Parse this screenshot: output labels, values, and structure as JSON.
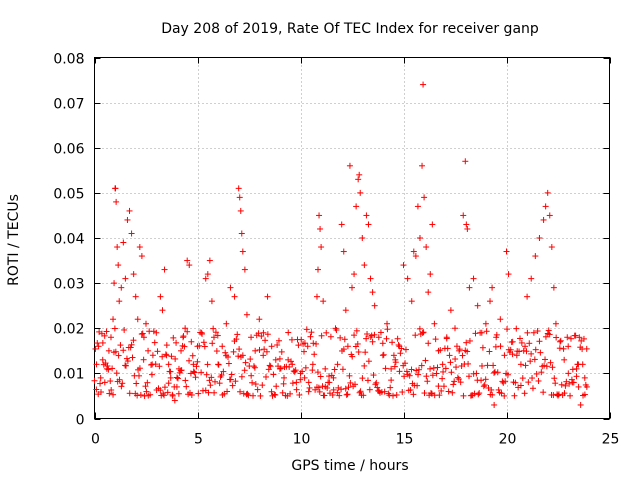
{
  "chart_data": {
    "type": "scatter",
    "title": "Day 208 of 2019, Rate Of TEC Index for receiver ganp",
    "xlabel": "GPS time / hours",
    "ylabel": "ROTI / TECUs",
    "xlim": [
      0,
      25
    ],
    "ylim": [
      0,
      0.08
    ],
    "xticks": [
      0,
      5,
      10,
      15,
      20,
      25
    ],
    "xtick_labels": [
      "0",
      "5",
      "10",
      "15",
      "20",
      "25"
    ],
    "yticks": [
      0,
      0.01,
      0.02,
      0.03,
      0.04,
      0.05,
      0.06,
      0.07,
      0.08
    ],
    "ytick_labels": [
      "0",
      "0.01",
      "0.02",
      "0.03",
      "0.04",
      "0.05",
      "0.06",
      "0.07",
      "0.08"
    ],
    "grid": true,
    "marker": "plus",
    "marker_color": "#ff0000",
    "series": [
      {
        "name": "ROTI",
        "points": [
          [
            0.1,
            0.012
          ],
          [
            0.2,
            0.016
          ],
          [
            0.3,
            0.009
          ],
          [
            0.4,
            0.013
          ],
          [
            0.5,
            0.008
          ],
          [
            0.6,
            0.011
          ],
          [
            0.7,
            0.015
          ],
          [
            0.8,
            0.018
          ],
          [
            0.9,
            0.022
          ],
          [
            0.95,
            0.03
          ],
          [
            1.0,
            0.051
          ],
          [
            1.02,
            0.051
          ],
          [
            1.05,
            0.048
          ],
          [
            1.1,
            0.038
          ],
          [
            1.15,
            0.034
          ],
          [
            1.2,
            0.026
          ],
          [
            1.3,
            0.029
          ],
          [
            1.4,
            0.039
          ],
          [
            1.5,
            0.031
          ],
          [
            1.6,
            0.044
          ],
          [
            1.7,
            0.046
          ],
          [
            1.8,
            0.041
          ],
          [
            1.9,
            0.032
          ],
          [
            2.0,
            0.027
          ],
          [
            2.1,
            0.022
          ],
          [
            2.2,
            0.038
          ],
          [
            2.3,
            0.036
          ],
          [
            2.4,
            0.018
          ],
          [
            2.5,
            0.021
          ],
          [
            2.6,
            0.015
          ],
          [
            2.8,
            0.012
          ],
          [
            3.0,
            0.019
          ],
          [
            3.2,
            0.027
          ],
          [
            3.3,
            0.024
          ],
          [
            3.4,
            0.033
          ],
          [
            3.5,
            0.014
          ],
          [
            3.6,
            0.012
          ],
          [
            3.7,
            0.009
          ],
          [
            3.8,
            0.005
          ],
          [
            3.9,
            0.004
          ],
          [
            4.0,
            0.007
          ],
          [
            4.1,
            0.011
          ],
          [
            4.2,
            0.015
          ],
          [
            4.3,
            0.018
          ],
          [
            4.4,
            0.02
          ],
          [
            4.5,
            0.035
          ],
          [
            4.6,
            0.034
          ],
          [
            4.7,
            0.017
          ],
          [
            4.8,
            0.012
          ],
          [
            5.0,
            0.016
          ],
          [
            5.2,
            0.019
          ],
          [
            5.4,
            0.031
          ],
          [
            5.5,
            0.032
          ],
          [
            5.6,
            0.035
          ],
          [
            5.7,
            0.026
          ],
          [
            5.8,
            0.018
          ],
          [
            6.0,
            0.012
          ],
          [
            6.2,
            0.016
          ],
          [
            6.4,
            0.021
          ],
          [
            6.6,
            0.029
          ],
          [
            6.8,
            0.027
          ],
          [
            7.0,
            0.051
          ],
          [
            7.05,
            0.049
          ],
          [
            7.1,
            0.046
          ],
          [
            7.15,
            0.041
          ],
          [
            7.2,
            0.037
          ],
          [
            7.3,
            0.033
          ],
          [
            7.4,
            0.023
          ],
          [
            7.6,
            0.018
          ],
          [
            7.8,
            0.015
          ],
          [
            8.0,
            0.022
          ],
          [
            8.2,
            0.019
          ],
          [
            8.4,
            0.027
          ],
          [
            8.6,
            0.016
          ],
          [
            8.8,
            0.013
          ],
          [
            9.0,
            0.011
          ],
          [
            9.2,
            0.009
          ],
          [
            9.4,
            0.013
          ],
          [
            9.6,
            0.012
          ],
          [
            9.8,
            0.008
          ],
          [
            10.0,
            0.01
          ],
          [
            10.2,
            0.009
          ],
          [
            10.4,
            0.008
          ],
          [
            10.6,
            0.012
          ],
          [
            10.8,
            0.027
          ],
          [
            10.85,
            0.033
          ],
          [
            10.9,
            0.045
          ],
          [
            10.95,
            0.042
          ],
          [
            11.0,
            0.038
          ],
          [
            11.1,
            0.026
          ],
          [
            11.2,
            0.011
          ],
          [
            11.4,
            0.008
          ],
          [
            11.6,
            0.009
          ],
          [
            11.8,
            0.012
          ],
          [
            12.0,
            0.043
          ],
          [
            12.1,
            0.037
          ],
          [
            12.2,
            0.024
          ],
          [
            12.3,
            0.016
          ],
          [
            12.4,
            0.056
          ],
          [
            12.5,
            0.029
          ],
          [
            12.6,
            0.032
          ],
          [
            12.7,
            0.047
          ],
          [
            12.8,
            0.053
          ],
          [
            12.85,
            0.054
          ],
          [
            12.9,
            0.05
          ],
          [
            13.0,
            0.04
          ],
          [
            13.1,
            0.034
          ],
          [
            13.2,
            0.045
          ],
          [
            13.3,
            0.043
          ],
          [
            13.4,
            0.031
          ],
          [
            13.5,
            0.028
          ],
          [
            13.6,
            0.025
          ],
          [
            13.8,
            0.018
          ],
          [
            14.0,
            0.014
          ],
          [
            14.2,
            0.021
          ],
          [
            14.4,
            0.011
          ],
          [
            14.6,
            0.013
          ],
          [
            14.8,
            0.016
          ],
          [
            15.0,
            0.034
          ],
          [
            15.2,
            0.031
          ],
          [
            15.4,
            0.026
          ],
          [
            15.5,
            0.037
          ],
          [
            15.6,
            0.036
          ],
          [
            15.7,
            0.047
          ],
          [
            15.8,
            0.04
          ],
          [
            15.9,
            0.056
          ],
          [
            15.95,
            0.074
          ],
          [
            16.0,
            0.049
          ],
          [
            16.1,
            0.038
          ],
          [
            16.2,
            0.028
          ],
          [
            16.3,
            0.032
          ],
          [
            16.4,
            0.043
          ],
          [
            16.5,
            0.021
          ],
          [
            16.7,
            0.015
          ],
          [
            16.9,
            0.012
          ],
          [
            17.1,
            0.018
          ],
          [
            17.3,
            0.024
          ],
          [
            17.5,
            0.02
          ],
          [
            17.7,
            0.015
          ],
          [
            17.9,
            0.045
          ],
          [
            18.0,
            0.057
          ],
          [
            18.05,
            0.043
          ],
          [
            18.1,
            0.042
          ],
          [
            18.2,
            0.029
          ],
          [
            18.4,
            0.031
          ],
          [
            18.6,
            0.025
          ],
          [
            18.8,
            0.019
          ],
          [
            19.0,
            0.021
          ],
          [
            19.2,
            0.026
          ],
          [
            19.3,
            0.029
          ],
          [
            19.4,
            0.003
          ],
          [
            19.5,
            0.018
          ],
          [
            19.7,
            0.022
          ],
          [
            19.9,
            0.014
          ],
          [
            20.0,
            0.037
          ],
          [
            20.1,
            0.032
          ],
          [
            20.3,
            0.017
          ],
          [
            20.5,
            0.014
          ],
          [
            20.7,
            0.012
          ],
          [
            20.9,
            0.016
          ],
          [
            21.0,
            0.027
          ],
          [
            21.2,
            0.031
          ],
          [
            21.4,
            0.036
          ],
          [
            21.6,
            0.04
          ],
          [
            21.8,
            0.044
          ],
          [
            21.9,
            0.047
          ],
          [
            22.0,
            0.05
          ],
          [
            22.1,
            0.045
          ],
          [
            22.2,
            0.038
          ],
          [
            22.3,
            0.029
          ],
          [
            22.4,
            0.021
          ],
          [
            22.6,
            0.017
          ],
          [
            22.8,
            0.013
          ],
          [
            23.0,
            0.01
          ],
          [
            23.2,
            0.008
          ],
          [
            23.4,
            0.011
          ],
          [
            23.5,
            0.007
          ],
          [
            23.6,
            0.003
          ],
          [
            23.7,
            0.012
          ],
          [
            23.8,
            0.009
          ],
          [
            23.9,
            0.007
          ]
        ],
        "band_lower_roti": 0.005,
        "band_upper_roti": 0.02
      }
    ]
  }
}
